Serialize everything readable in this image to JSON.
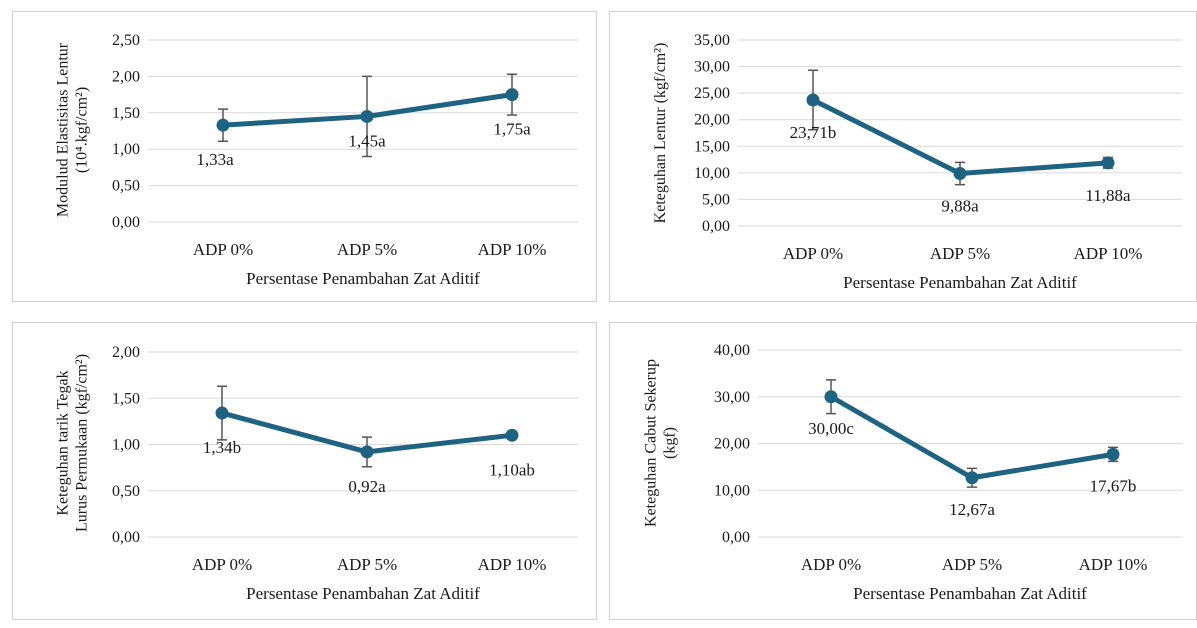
{
  "chart_data": [
    {
      "type": "line",
      "categories": [
        "ADP 0%",
        "ADP 5%",
        "ADP 10%"
      ],
      "values": [
        1.33,
        1.45,
        1.75
      ],
      "errors": [
        0.22,
        0.55,
        0.28
      ],
      "data_labels": [
        "1,33a",
        "1,45a",
        "1,75a"
      ],
      "ylabel_lines": [
        "Modulud Elastisitas Lentur",
        "(10⁴.kgf/cm²)"
      ],
      "xlabel": "Persentase Penambahan Zat Aditif",
      "ylim": [
        0,
        2.5
      ],
      "yticks": [
        0,
        0.5,
        1.0,
        1.5,
        2.0,
        2.5
      ],
      "ytick_labels": [
        "0,00",
        "0,50",
        "1,00",
        "1,50",
        "2,00",
        "2,50"
      ],
      "grid": true,
      "color": "#1f6383"
    },
    {
      "type": "line",
      "categories": [
        "ADP 0%",
        "ADP 5%",
        "ADP 10%"
      ],
      "values": [
        23.71,
        9.88,
        11.88
      ],
      "errors": [
        5.6,
        2.1,
        1.0
      ],
      "data_labels": [
        "23,71b",
        "9,88a",
        "11,88a"
      ],
      "ylabel_lines": [
        "Keteguhan Lentur (kgf/cm²)"
      ],
      "xlabel": "Persentase Penambahan Zat Aditif",
      "ylim": [
        0,
        35
      ],
      "yticks": [
        0,
        5,
        10,
        15,
        20,
        25,
        30,
        35
      ],
      "ytick_labels": [
        "0,00",
        "5,00",
        "10,00",
        "15,00",
        "20,00",
        "25,00",
        "30,00",
        "35,00"
      ],
      "grid": true,
      "color": "#1f6383"
    },
    {
      "type": "line",
      "categories": [
        "ADP 0%",
        "ADP 5%",
        "ADP 10%"
      ],
      "values": [
        1.34,
        0.92,
        1.1
      ],
      "errors": [
        0.29,
        0.16,
        0.0
      ],
      "data_labels": [
        "1,34b",
        "0,92a",
        "1,10ab"
      ],
      "ylabel_lines": [
        "Keteguhan tarik Tegak",
        "Lurus Permukaan (kgf/cm²)"
      ],
      "xlabel": "Persentase Penambahan Zat Aditif",
      "ylim": [
        0,
        2.0
      ],
      "yticks": [
        0,
        0.5,
        1.0,
        1.5,
        2.0
      ],
      "ytick_labels": [
        "0,00",
        "0,50",
        "1,00",
        "1,50",
        "2,00"
      ],
      "grid": true,
      "color": "#1f6383"
    },
    {
      "type": "line",
      "categories": [
        "ADP 0%",
        "ADP 5%",
        "ADP 10%"
      ],
      "values": [
        30.0,
        12.67,
        17.67
      ],
      "errors": [
        3.6,
        2.0,
        1.5
      ],
      "data_labels": [
        "30,00c",
        "12,67a",
        "17,67b"
      ],
      "ylabel_lines": [
        "Keteguhan Cabut Sekerup",
        "(kgf)"
      ],
      "xlabel": "Persentase Penambahan Zat Aditif",
      "ylim": [
        0,
        40
      ],
      "yticks": [
        0,
        10,
        20,
        30,
        40
      ],
      "ytick_labels": [
        "0,00",
        "10,00",
        "20,00",
        "30,00",
        "40,00"
      ],
      "grid": true,
      "color": "#1f6383"
    }
  ]
}
